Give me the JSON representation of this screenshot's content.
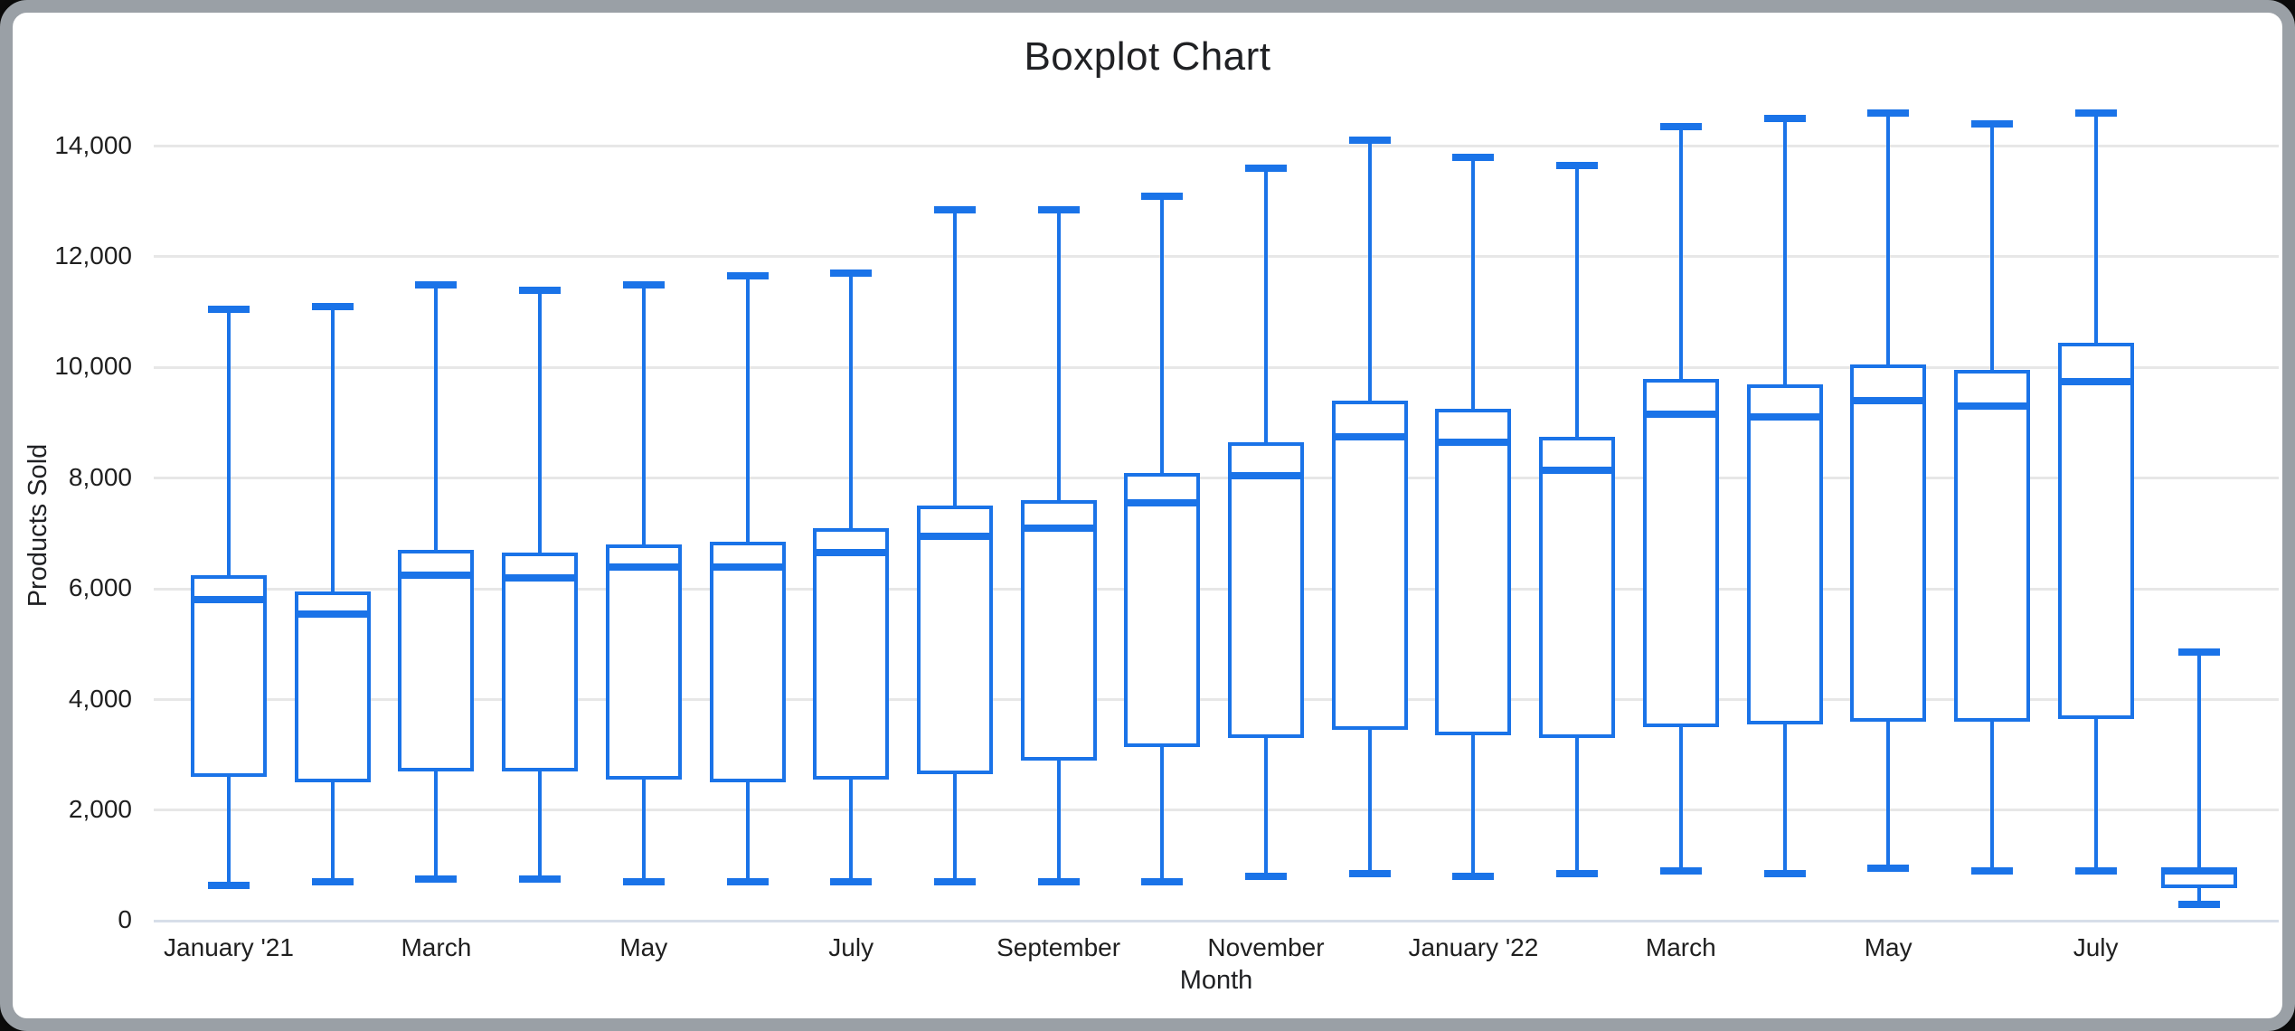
{
  "colors": {
    "series_blue": "#1a73e8",
    "gridline": "#e7e7e7",
    "zero_line": "#d7dee9",
    "text": "#202124",
    "card_border": "#9aa0a6",
    "page_background": "#0d0d0d",
    "card_background": "#ffffff"
  },
  "chart_data": {
    "type": "boxplot",
    "title": "Boxplot Chart",
    "xlabel": "Month",
    "ylabel": "Products Sold",
    "ylim": [
      0,
      14000
    ],
    "ytick_step": 2000,
    "grid": true,
    "legend_position": "none",
    "ytick_labels": [
      "0",
      "2,000",
      "4,000",
      "6,000",
      "8,000",
      "10,000",
      "12,000",
      "14,000"
    ],
    "ytick_values": [
      0,
      2000,
      4000,
      6000,
      8000,
      10000,
      12000,
      14000
    ],
    "xtick_labels": [
      {
        "at": 0,
        "label": "January '21"
      },
      {
        "at": 2,
        "label": "March"
      },
      {
        "at": 4,
        "label": "May"
      },
      {
        "at": 6,
        "label": "July"
      },
      {
        "at": 8,
        "label": "September"
      },
      {
        "at": 10,
        "label": "November"
      },
      {
        "at": 12,
        "label": "January '22"
      },
      {
        "at": 14,
        "label": "March"
      },
      {
        "at": 16,
        "label": "May"
      },
      {
        "at": 18,
        "label": "July"
      }
    ],
    "boxes": [
      {
        "min": 650,
        "q1": 2600,
        "median": 5800,
        "q3": 6250,
        "max": 11050
      },
      {
        "min": 700,
        "q1": 2500,
        "median": 5550,
        "q3": 5950,
        "max": 11100
      },
      {
        "min": 750,
        "q1": 2700,
        "median": 6250,
        "q3": 6700,
        "max": 11500
      },
      {
        "min": 750,
        "q1": 2700,
        "median": 6200,
        "q3": 6650,
        "max": 11400
      },
      {
        "min": 700,
        "q1": 2550,
        "median": 6400,
        "q3": 6800,
        "max": 11500
      },
      {
        "min": 700,
        "q1": 2500,
        "median": 6400,
        "q3": 6850,
        "max": 11650
      },
      {
        "min": 700,
        "q1": 2550,
        "median": 6650,
        "q3": 7100,
        "max": 11700
      },
      {
        "min": 700,
        "q1": 2650,
        "median": 6950,
        "q3": 7500,
        "max": 12850
      },
      {
        "min": 700,
        "q1": 2900,
        "median": 7100,
        "q3": 7600,
        "max": 12850
      },
      {
        "min": 700,
        "q1": 3150,
        "median": 7550,
        "q3": 8100,
        "max": 13100
      },
      {
        "min": 800,
        "q1": 3300,
        "median": 8050,
        "q3": 8650,
        "max": 13600
      },
      {
        "min": 850,
        "q1": 3450,
        "median": 8750,
        "q3": 9400,
        "max": 14100
      },
      {
        "min": 800,
        "q1": 3350,
        "median": 8650,
        "q3": 9250,
        "max": 13800
      },
      {
        "min": 850,
        "q1": 3300,
        "median": 8150,
        "q3": 8750,
        "max": 13650
      },
      {
        "min": 900,
        "q1": 3500,
        "median": 9150,
        "q3": 9800,
        "max": 14350
      },
      {
        "min": 850,
        "q1": 3550,
        "median": 9100,
        "q3": 9700,
        "max": 14500
      },
      {
        "min": 950,
        "q1": 3600,
        "median": 9400,
        "q3": 10050,
        "max": 14600
      },
      {
        "min": 900,
        "q1": 3600,
        "median": 9300,
        "q3": 9950,
        "max": 14400
      },
      {
        "min": 900,
        "q1": 3650,
        "median": 9750,
        "q3": 10450,
        "max": 14600
      },
      {
        "min": 300,
        "q1": 600,
        "median": 900,
        "q3": 950,
        "max": 4850
      }
    ]
  }
}
